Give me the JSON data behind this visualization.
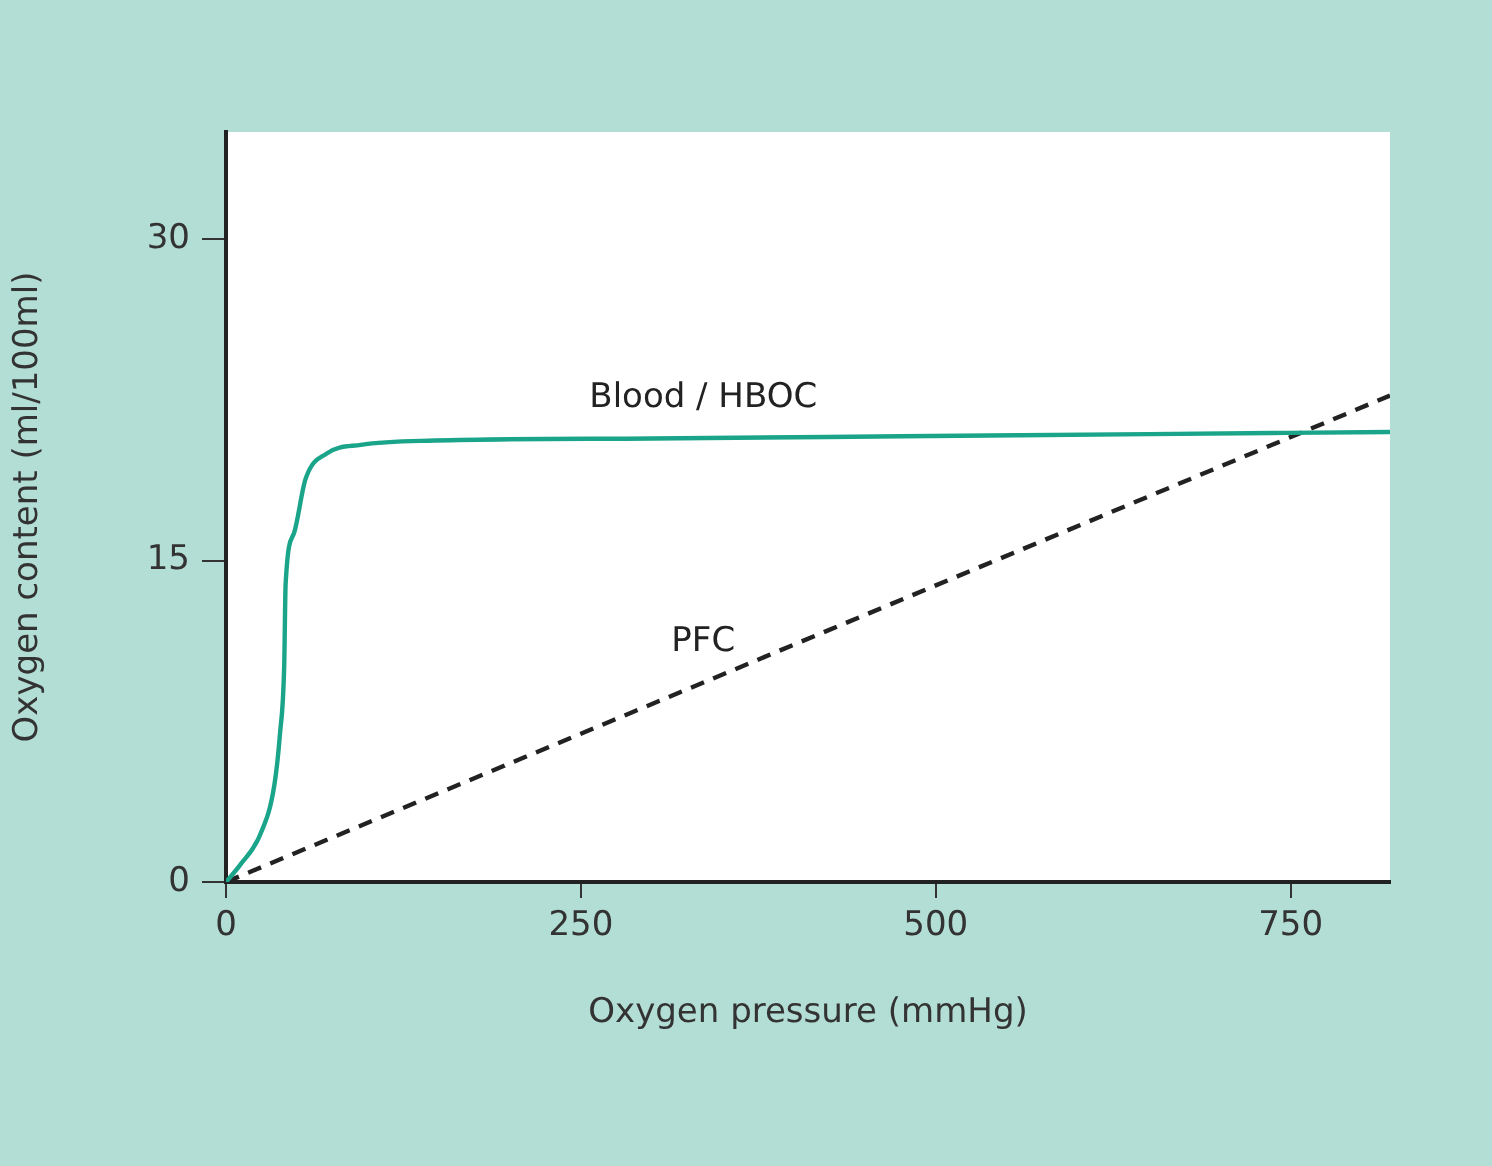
{
  "chart_data": {
    "type": "line",
    "xlabel": "Oxygen pressure (mmHg)",
    "ylabel": "Oxygen content (ml/100ml)",
    "xlim": [
      0,
      820
    ],
    "xticks": [
      0,
      250,
      500,
      750
    ],
    "ylim": [
      0,
      35
    ],
    "yticks": [
      0,
      15,
      30
    ],
    "grid": false,
    "legend": false,
    "marker": "none",
    "series": [
      {
        "name": "Blood / HBOC",
        "color": "#1aa58a",
        "line_style": "solid",
        "x": [
          0,
          10,
          24,
          34,
          38,
          41,
          42,
          48,
          56,
          71,
          95,
          147,
          300,
          476,
          650,
          820
        ],
        "values": [
          0,
          0.8,
          2.2,
          4.5,
          6.9,
          10.1,
          13.9,
          16.3,
          18.8,
          20.0,
          20.4,
          20.6,
          20.7,
          20.8,
          20.9,
          21.0
        ]
      },
      {
        "name": "PFC",
        "color": "#222222",
        "line_style": "dashed",
        "x": [
          0,
          820
        ],
        "values": [
          0,
          22.7
        ]
      }
    ]
  }
}
